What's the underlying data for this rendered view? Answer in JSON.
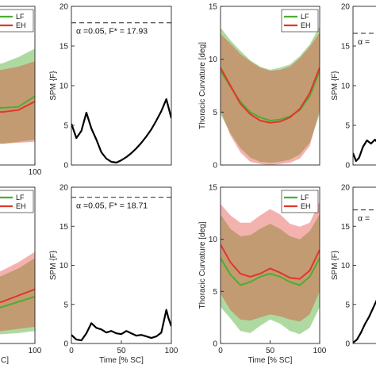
{
  "chart_data": [
    {
      "id": "p1",
      "type": "area",
      "xlim": [
        0,
        100
      ],
      "ylim": [
        0,
        15
      ],
      "xticks": [
        100
      ],
      "yticks": [],
      "xlabel": "",
      "ylabel": "",
      "legend": {
        "placement": "top-right",
        "entries": [
          "LF",
          "EH"
        ]
      },
      "series": [
        {
          "name": "LF",
          "color": "#4cae2f",
          "x": [
            0,
            20,
            40,
            60,
            80,
            100
          ],
          "mean": [
            6.2,
            5.8,
            5.6,
            5.4,
            5.5,
            6.5
          ],
          "lower": [
            2.8,
            2.5,
            2.2,
            2.0,
            2.2,
            2.4
          ],
          "upper": [
            9.8,
            9.5,
            9.5,
            9.6,
            10.2,
            11.0
          ]
        },
        {
          "name": "EH",
          "color": "#e2352b",
          "x": [
            0,
            20,
            40,
            60,
            80,
            100
          ],
          "mean": [
            5.6,
            5.4,
            5.2,
            5.0,
            5.2,
            6.0
          ],
          "lower": [
            2.3,
            2.2,
            2.1,
            2.0,
            2.1,
            2.2
          ],
          "upper": [
            9.2,
            9.0,
            8.9,
            9.0,
            9.3,
            9.8
          ]
        }
      ]
    },
    {
      "id": "p2",
      "type": "line",
      "xlim": [
        0,
        100
      ],
      "ylim": [
        0,
        20
      ],
      "xticks": [],
      "yticks": [
        0,
        5,
        10,
        15,
        20
      ],
      "xlabel": "",
      "ylabel": "SPM {F}",
      "threshold": 17.93,
      "annotation": "α =0.05,    F* = 17.93",
      "series": [
        {
          "color": "#000000",
          "x": [
            0,
            5,
            10,
            15,
            20,
            25,
            30,
            35,
            40,
            45,
            50,
            55,
            60,
            65,
            70,
            75,
            80,
            85,
            90,
            95,
            100
          ],
          "y": [
            5.2,
            3.4,
            4.3,
            6.6,
            4.6,
            3.2,
            1.6,
            0.8,
            0.4,
            0.3,
            0.6,
            1.0,
            1.5,
            2.1,
            2.8,
            3.6,
            4.5,
            5.6,
            6.8,
            8.3,
            5.9
          ]
        }
      ]
    },
    {
      "id": "p3",
      "type": "area",
      "xlim": [
        0,
        100
      ],
      "ylim": [
        0,
        15
      ],
      "xticks": [],
      "yticks": [
        0,
        5,
        10,
        15
      ],
      "xlabel": "",
      "ylabel": "Thoracic Curvature [deg]",
      "legend": {
        "placement": "top-right",
        "entries": [
          "LF",
          "EH"
        ]
      },
      "series": [
        {
          "name": "LF",
          "color": "#4cae2f",
          "x": [
            0,
            10,
            20,
            30,
            40,
            50,
            60,
            70,
            80,
            90,
            100
          ],
          "mean": [
            8.9,
            7.4,
            6.0,
            5.0,
            4.5,
            4.2,
            4.3,
            4.6,
            5.2,
            6.5,
            8.9
          ],
          "lower": [
            4.8,
            3.0,
            1.6,
            0.7,
            0.3,
            0.2,
            0.3,
            0.5,
            1.0,
            2.1,
            4.8
          ],
          "upper": [
            13.0,
            11.8,
            10.8,
            9.9,
            9.3,
            9.0,
            9.2,
            9.5,
            10.3,
            11.4,
            13.1
          ]
        },
        {
          "name": "EH",
          "color": "#e2352b",
          "x": [
            0,
            10,
            20,
            30,
            40,
            50,
            60,
            70,
            80,
            90,
            100
          ],
          "mean": [
            9.2,
            7.5,
            5.8,
            4.8,
            4.2,
            4.0,
            4.1,
            4.5,
            5.3,
            6.8,
            9.2
          ],
          "lower": [
            5.2,
            2.8,
            1.2,
            0.3,
            0.1,
            0.0,
            0.1,
            0.2,
            0.6,
            1.8,
            5.2
          ],
          "upper": [
            12.4,
            11.5,
            10.5,
            9.8,
            9.2,
            8.9,
            9.0,
            9.3,
            10.1,
            11.2,
            12.5
          ]
        }
      ]
    },
    {
      "id": "p4",
      "type": "line",
      "xlim": [
        0,
        100
      ],
      "ylim": [
        0,
        20
      ],
      "xticks": [],
      "yticks": [
        0,
        5,
        10,
        15,
        20
      ],
      "xlabel": "",
      "ylabel": "SPM {F}",
      "threshold": 16.6,
      "annotation": "α =",
      "series": [
        {
          "color": "#000000",
          "x": [
            0,
            3,
            6,
            10,
            14,
            18,
            22,
            26,
            30
          ],
          "y": [
            1.5,
            0.5,
            0.9,
            2.3,
            3.1,
            2.7,
            3.2,
            2.6,
            3.5
          ]
        }
      ]
    },
    {
      "id": "p5",
      "type": "area",
      "xlim": [
        0,
        100
      ],
      "ylim": [
        0,
        15
      ],
      "xticks": [
        100
      ],
      "yticks": [],
      "xlabel": "C]",
      "ylabel": "",
      "legend": {
        "placement": "top-right",
        "entries": [
          "LF",
          "EH"
        ]
      },
      "series": [
        {
          "name": "LF",
          "color": "#4cae2f",
          "x": [
            0,
            20,
            40,
            60,
            80,
            100
          ],
          "mean": [
            2.6,
            2.8,
            3.1,
            3.5,
            4.0,
            4.5
          ],
          "lower": [
            0.5,
            0.6,
            0.7,
            0.9,
            1.0,
            1.2
          ],
          "upper": [
            5.0,
            5.2,
            5.8,
            6.5,
            7.2,
            8.2
          ]
        },
        {
          "name": "EH",
          "color": "#e2352b",
          "x": [
            0,
            20,
            40,
            60,
            80,
            100
          ],
          "mean": [
            3.0,
            3.3,
            3.6,
            4.0,
            4.6,
            5.2
          ],
          "lower": [
            0.8,
            0.9,
            1.0,
            1.2,
            1.4,
            1.6
          ],
          "upper": [
            5.6,
            5.9,
            6.4,
            7.0,
            7.8,
            8.8
          ]
        }
      ]
    },
    {
      "id": "p6",
      "type": "line",
      "xlim": [
        0,
        100
      ],
      "ylim": [
        0,
        20
      ],
      "xticks": [
        0,
        50,
        100
      ],
      "yticks": [
        0,
        5,
        10,
        15,
        20
      ],
      "xlabel": "Time [% SC]",
      "ylabel": "SPM {F}",
      "threshold": 18.71,
      "annotation": "α =0.05,    F* = 18.71",
      "series": [
        {
          "color": "#000000",
          "x": [
            0,
            5,
            10,
            15,
            20,
            25,
            30,
            35,
            40,
            45,
            50,
            55,
            60,
            65,
            70,
            75,
            80,
            85,
            90,
            95,
            97,
            100
          ],
          "y": [
            1.1,
            0.5,
            0.4,
            1.3,
            2.6,
            2.0,
            1.8,
            1.4,
            1.6,
            1.3,
            1.2,
            1.6,
            1.3,
            1.0,
            1.1,
            0.9,
            0.7,
            0.9,
            1.4,
            4.3,
            3.3,
            2.2
          ]
        }
      ]
    },
    {
      "id": "p7",
      "type": "area",
      "xlim": [
        0,
        100
      ],
      "ylim": [
        0,
        15
      ],
      "xticks": [
        0,
        50,
        100
      ],
      "yticks": [
        0,
        5,
        10,
        15
      ],
      "xlabel": "Time [% SC]",
      "ylabel": "Thoracic Curvature [deg]",
      "legend": {
        "placement": "top-right",
        "entries": [
          "LF",
          "EH"
        ]
      },
      "series": [
        {
          "name": "LF",
          "color": "#4cae2f",
          "x": [
            0,
            10,
            20,
            30,
            40,
            50,
            60,
            70,
            80,
            90,
            100
          ],
          "mean": [
            8.2,
            6.6,
            5.6,
            5.9,
            6.4,
            6.7,
            6.4,
            5.9,
            5.6,
            6.4,
            8.2
          ],
          "lower": [
            3.5,
            2.4,
            1.2,
            1.0,
            1.7,
            2.3,
            1.9,
            1.2,
            0.9,
            1.5,
            3.5
          ],
          "upper": [
            12.4,
            11.0,
            10.3,
            10.4,
            11.0,
            11.5,
            11.0,
            10.3,
            10.0,
            10.8,
            12.4
          ]
        },
        {
          "name": "EH",
          "color": "#e2352b",
          "x": [
            0,
            10,
            20,
            30,
            40,
            50,
            60,
            70,
            80,
            90,
            100
          ],
          "mean": [
            9.5,
            7.8,
            6.7,
            6.4,
            6.7,
            7.2,
            6.8,
            6.3,
            6.2,
            7.0,
            9.0
          ],
          "lower": [
            4.8,
            3.2,
            2.3,
            2.2,
            2.5,
            2.8,
            2.6,
            2.3,
            2.1,
            2.8,
            5.0
          ],
          "upper": [
            13.4,
            12.3,
            11.6,
            11.6,
            12.3,
            12.9,
            12.4,
            11.5,
            11.2,
            11.6,
            13.6
          ]
        }
      ]
    },
    {
      "id": "p8",
      "type": "line",
      "xlim": [
        0,
        100
      ],
      "ylim": [
        0,
        20
      ],
      "xticks": [],
      "yticks": [
        0,
        5,
        10,
        15,
        20
      ],
      "xlabel": "",
      "ylabel": "SPM {F}",
      "threshold": 17.1,
      "annotation": "α =",
      "series": [
        {
          "color": "#000000",
          "x": [
            0,
            4,
            8,
            12,
            16,
            20,
            24,
            28,
            32
          ],
          "y": [
            0.1,
            0.5,
            1.4,
            2.5,
            3.4,
            4.5,
            5.6,
            6.4,
            7.0
          ]
        }
      ]
    }
  ]
}
